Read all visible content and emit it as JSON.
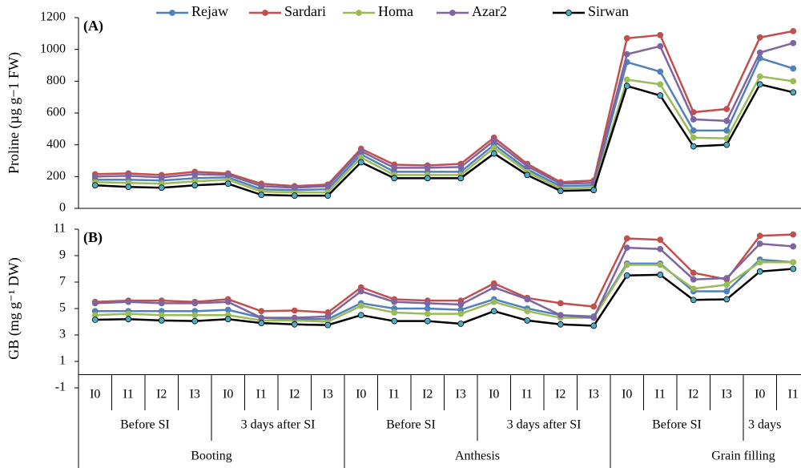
{
  "chart_data": [
    {
      "type": "line",
      "ylabel": "Proline (µg g−1 FW)",
      "annotation": "(A)",
      "ylim": [
        0,
        1200
      ],
      "yticks": [
        0,
        200,
        400,
        600,
        800,
        1000,
        1200
      ],
      "legend": "top",
      "series": [
        {
          "name": "Rejaw",
          "color": "#4f81bd",
          "marker_color": "#4f81bd",
          "values": [
            180,
            180,
            175,
            190,
            195,
            120,
            115,
            120,
            340,
            230,
            230,
            230,
            400,
            245,
            140,
            145,
            920,
            860,
            490,
            490,
            945,
            880
          ]
        },
        {
          "name": "Sardari",
          "color": "#c0504d",
          "marker_color": "#c0504d",
          "values": [
            215,
            220,
            210,
            230,
            220,
            155,
            140,
            150,
            375,
            275,
            270,
            280,
            445,
            280,
            165,
            175,
            1070,
            1090,
            605,
            625,
            1075,
            1115
          ]
        },
        {
          "name": "Homa",
          "color": "#9bbb59",
          "marker_color": "#9bbb59",
          "values": [
            165,
            160,
            155,
            170,
            180,
            105,
            100,
            100,
            320,
            210,
            210,
            210,
            380,
            230,
            125,
            130,
            810,
            780,
            445,
            440,
            830,
            800
          ]
        },
        {
          "name": "Azar2",
          "color": "#8064a2",
          "marker_color": "#8064a2",
          "values": [
            200,
            205,
            195,
            215,
            210,
            140,
            130,
            140,
            360,
            255,
            255,
            260,
            425,
            265,
            155,
            160,
            970,
            1020,
            560,
            550,
            980,
            1040
          ]
        },
        {
          "name": "Sirwan",
          "color": "#000000",
          "marker_color": "#4bacc6",
          "values": [
            145,
            135,
            130,
            145,
            155,
            85,
            80,
            80,
            290,
            190,
            190,
            190,
            345,
            210,
            110,
            115,
            770,
            710,
            390,
            400,
            780,
            730
          ]
        }
      ]
    },
    {
      "type": "line",
      "ylabel": "GB (mg g⁻¹ DW)",
      "annotation": "(B)",
      "ylim": [
        -1,
        11
      ],
      "yticks": [
        -1,
        1,
        3,
        5,
        7,
        9,
        11
      ],
      "categories": [
        "I0",
        "I1",
        "I2",
        "I3",
        "I0",
        "I1",
        "I2",
        "I3",
        "I0",
        "I1",
        "I2",
        "I3",
        "I0",
        "I1",
        "I2",
        "I3",
        "I0",
        "I1",
        "I2",
        "I3",
        "I0",
        "I1"
      ],
      "groups": [
        "Before SI",
        "3 days after SI",
        "Before SI",
        "3 days after SI",
        "Before SI",
        "3 days"
      ],
      "supergroups": [
        "Booting",
        "Anthesis",
        "Grain filling"
      ],
      "series": [
        {
          "color": "#4f81bd",
          "marker_color": "#4f81bd",
          "values": [
            4.8,
            4.8,
            4.8,
            4.8,
            4.9,
            4.3,
            4.2,
            4.2,
            5.4,
            5.0,
            5.0,
            4.9,
            5.7,
            5.0,
            4.5,
            4.4,
            8.4,
            8.4,
            6.3,
            6.3,
            8.7,
            8.5
          ]
        },
        {
          "color": "#c0504d",
          "marker_color": "#c0504d",
          "values": [
            5.5,
            5.6,
            5.6,
            5.5,
            5.7,
            4.8,
            4.85,
            4.7,
            6.6,
            5.7,
            5.6,
            5.6,
            6.9,
            5.8,
            5.4,
            5.15,
            10.3,
            10.2,
            7.7,
            7.2,
            10.5,
            10.6
          ]
        },
        {
          "color": "#9bbb59",
          "marker_color": "#9bbb59",
          "values": [
            4.5,
            4.6,
            4.5,
            4.5,
            4.5,
            4.1,
            4.1,
            4.0,
            5.2,
            4.7,
            4.6,
            4.6,
            5.5,
            4.8,
            4.3,
            4.3,
            8.3,
            8.3,
            6.5,
            6.8,
            8.5,
            8.5
          ]
        },
        {
          "color": "#8064a2",
          "marker_color": "#8064a2",
          "values": [
            5.4,
            5.5,
            5.4,
            5.4,
            5.5,
            4.3,
            4.3,
            4.4,
            6.3,
            5.5,
            5.4,
            5.3,
            6.6,
            5.7,
            4.5,
            4.3,
            9.6,
            9.5,
            7.2,
            7.3,
            9.9,
            9.7
          ]
        },
        {
          "color": "#000000",
          "marker_color": "#4bacc6",
          "values": [
            4.15,
            4.2,
            4.1,
            4.05,
            4.2,
            3.9,
            3.8,
            3.75,
            4.5,
            4.05,
            4.05,
            3.85,
            4.8,
            4.1,
            3.8,
            3.7,
            7.5,
            7.55,
            5.65,
            5.7,
            7.8,
            8.0
          ]
        }
      ]
    }
  ]
}
